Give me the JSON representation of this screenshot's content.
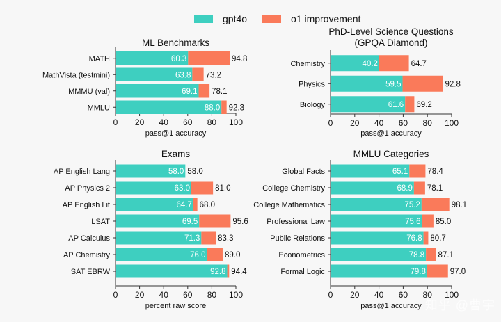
{
  "legend": [
    {
      "name": "gpt4o",
      "color": "#3ecfc0"
    },
    {
      "name": "o1 improvement",
      "color": "#fa7a5a"
    }
  ],
  "watermark": "知乎 @曹宇",
  "chart_data": [
    {
      "type": "bar",
      "orientation": "horizontal",
      "stacked": true,
      "title": "ML Benchmarks",
      "xlabel": "pass@1 accuracy",
      "xlim": [
        0,
        100
      ],
      "xticks": [
        "0",
        "20",
        "40",
        "60",
        "80",
        "100"
      ],
      "categories": [
        "MATH",
        "MathVista (testmini)",
        "MMMU (val)",
        "MMLU"
      ],
      "series": [
        {
          "name": "gpt4o",
          "values": [
            60.3,
            63.8,
            69.1,
            88.0
          ]
        },
        {
          "name": "o1",
          "values": [
            94.8,
            73.2,
            78.1,
            92.3
          ]
        }
      ]
    },
    {
      "type": "bar",
      "orientation": "horizontal",
      "stacked": true,
      "title": "PhD-Level Science Questions",
      "subtitle": "(GPQA Diamond)",
      "xlabel": "pass@1 accuracy",
      "xlim": [
        0,
        100
      ],
      "xticks": [
        "0",
        "20",
        "40",
        "60",
        "80",
        "100"
      ],
      "categories": [
        "Chemistry",
        "Physics",
        "Biology"
      ],
      "series": [
        {
          "name": "gpt4o",
          "values": [
            40.2,
            59.5,
            61.6
          ]
        },
        {
          "name": "o1",
          "values": [
            64.7,
            92.8,
            69.2
          ]
        }
      ]
    },
    {
      "type": "bar",
      "orientation": "horizontal",
      "stacked": true,
      "title": "Exams",
      "xlabel": "percent raw score",
      "xlim": [
        0,
        100
      ],
      "xticks": [
        "0",
        "20",
        "40",
        "60",
        "80",
        "100"
      ],
      "categories": [
        "AP English Lang",
        "AP Physics 2",
        "AP English Lit",
        "LSAT",
        "AP Calculus",
        "AP Chemistry",
        "SAT EBRW"
      ],
      "series": [
        {
          "name": "gpt4o",
          "values": [
            58.0,
            63.0,
            64.7,
            69.5,
            71.3,
            76.0,
            92.8
          ]
        },
        {
          "name": "o1",
          "values": [
            58.0,
            81.0,
            68.0,
            95.6,
            83.3,
            89.0,
            94.4
          ]
        }
      ]
    },
    {
      "type": "bar",
      "orientation": "horizontal",
      "stacked": true,
      "title": "MMLU Categories",
      "xlabel": "pass@1 accuracy",
      "xlim": [
        0,
        100
      ],
      "xticks": [
        "0",
        "20",
        "40",
        "60",
        "80",
        "100"
      ],
      "categories": [
        "Global Facts",
        "College Chemistry",
        "College Mathematics",
        "Professional Law",
        "Public Relations",
        "Econometrics",
        "Formal Logic"
      ],
      "series": [
        {
          "name": "gpt4o",
          "values": [
            65.1,
            68.9,
            75.2,
            75.6,
            76.8,
            78.8,
            79.8
          ]
        },
        {
          "name": "o1",
          "values": [
            78.4,
            78.1,
            98.1,
            85.0,
            80.7,
            87.1,
            97.0
          ]
        }
      ]
    }
  ]
}
